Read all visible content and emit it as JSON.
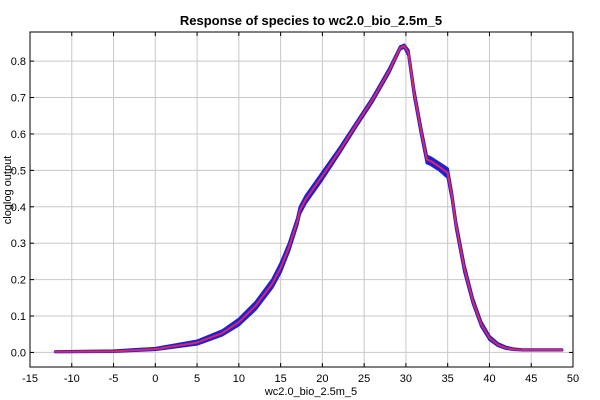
{
  "chart_data": {
    "type": "line",
    "title": "Response of species to wc2.0_bio_2.5m_5",
    "xlabel": "wc2.0_bio_2.5m_5",
    "ylabel": "cloglog output",
    "xlim": [
      -15,
      50
    ],
    "ylim": [
      -0.04,
      0.88
    ],
    "xticks": [
      -15,
      -10,
      -5,
      0,
      5,
      10,
      15,
      20,
      25,
      30,
      35,
      40,
      45,
      50
    ],
    "yticks": [
      0.0,
      0.1,
      0.2,
      0.3,
      0.4,
      0.5,
      0.6,
      0.7,
      0.8
    ],
    "grid": true,
    "colors": {
      "band": "#1f1fd6",
      "mean": "#e0245e"
    },
    "series": [
      {
        "role": "confidence-band",
        "x": [
          -12,
          -5,
          0,
          5,
          8,
          10,
          12,
          14,
          15,
          16,
          17,
          17.3,
          18,
          20,
          22,
          24,
          26,
          28,
          29.3,
          29.8,
          30.3,
          31,
          31.8,
          32.5,
          33,
          34,
          35,
          35.5,
          36,
          37,
          38,
          39,
          40,
          41,
          42,
          43,
          44,
          45,
          48.7
        ],
        "upper": [
          0.003,
          0.005,
          0.012,
          0.032,
          0.06,
          0.092,
          0.138,
          0.2,
          0.245,
          0.3,
          0.37,
          0.4,
          0.43,
          0.495,
          0.56,
          0.63,
          0.7,
          0.78,
          0.84,
          0.845,
          0.83,
          0.72,
          0.62,
          0.54,
          0.535,
          0.52,
          0.505,
          0.44,
          0.36,
          0.24,
          0.15,
          0.085,
          0.045,
          0.025,
          0.015,
          0.01,
          0.008,
          0.008,
          0.008
        ],
        "lower": [
          0.001,
          0.002,
          0.007,
          0.022,
          0.047,
          0.075,
          0.118,
          0.178,
          0.22,
          0.278,
          0.35,
          0.38,
          0.41,
          0.475,
          0.545,
          0.618,
          0.688,
          0.768,
          0.832,
          0.838,
          0.815,
          0.7,
          0.6,
          0.52,
          0.515,
          0.5,
          0.48,
          0.42,
          0.34,
          0.22,
          0.135,
          0.072,
          0.035,
          0.018,
          0.01,
          0.007,
          0.006,
          0.006,
          0.006
        ]
      },
      {
        "role": "mean",
        "x": [
          -12,
          -5,
          0,
          5,
          8,
          10,
          12,
          14,
          15,
          16,
          17,
          17.3,
          18,
          20,
          22,
          24,
          26,
          28,
          29.3,
          29.8,
          30.3,
          31,
          31.8,
          32.5,
          33,
          34,
          35,
          35.5,
          36,
          37,
          38,
          39,
          40,
          41,
          42,
          43,
          44,
          45,
          48.7
        ],
        "y": [
          0.002,
          0.003,
          0.009,
          0.027,
          0.053,
          0.083,
          0.128,
          0.189,
          0.232,
          0.289,
          0.36,
          0.39,
          0.42,
          0.485,
          0.552,
          0.624,
          0.694,
          0.774,
          0.836,
          0.842,
          0.823,
          0.71,
          0.61,
          0.53,
          0.525,
          0.51,
          0.493,
          0.43,
          0.35,
          0.23,
          0.142,
          0.078,
          0.04,
          0.021,
          0.012,
          0.008,
          0.007,
          0.007,
          0.007
        ]
      }
    ]
  }
}
